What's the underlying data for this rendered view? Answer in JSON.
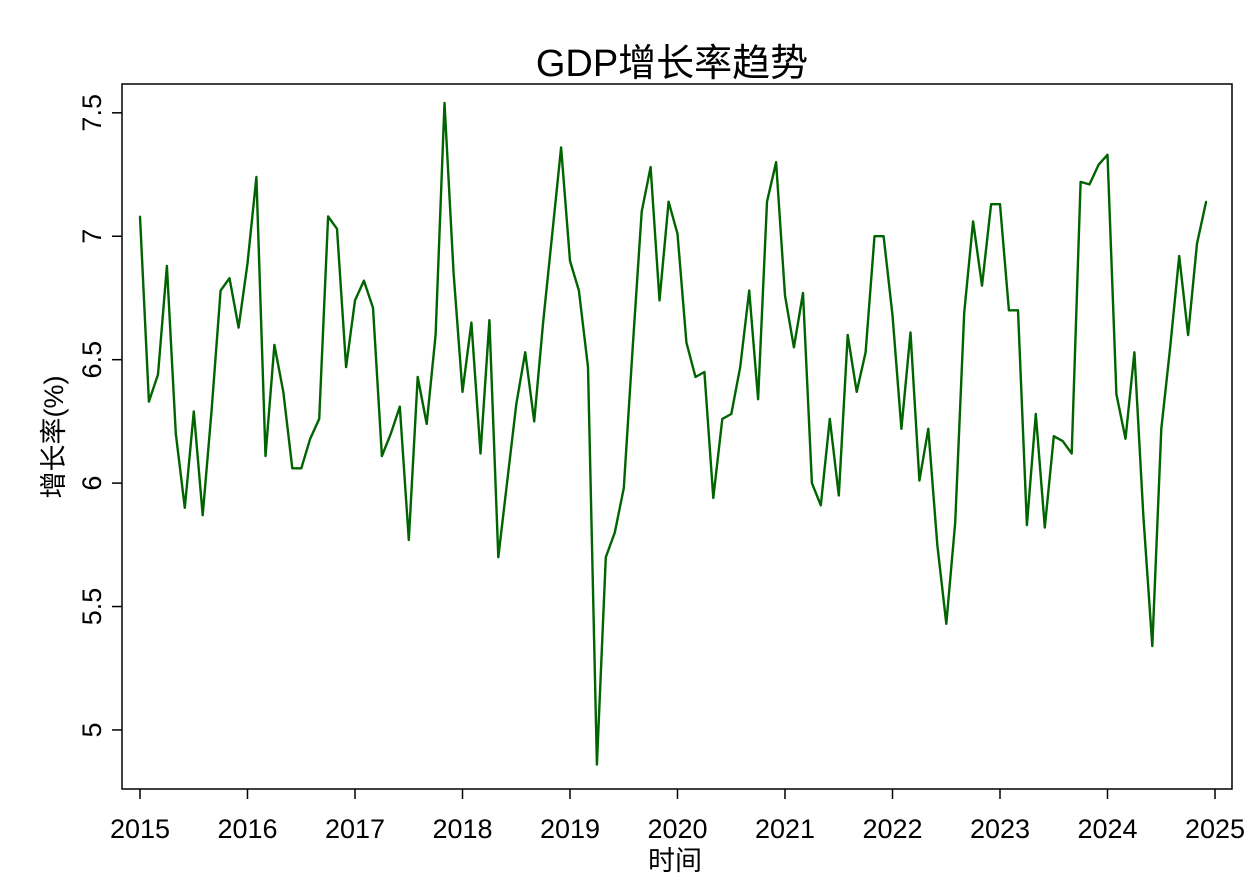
{
  "chart_data": {
    "type": "line",
    "title": "GDP增长率趋势",
    "xlabel": "时间",
    "ylabel": "增长率(%)",
    "xlim": [
      2015.0,
      2025.0
    ],
    "ylim": [
      4.85,
      7.56
    ],
    "xticks": [
      "2015",
      "2016",
      "2017",
      "2018",
      "2019",
      "2020",
      "2021",
      "2022",
      "2023",
      "2024",
      "2025"
    ],
    "yticks": [
      "5",
      "5.5",
      "6",
      "6.5",
      "7",
      "7.5"
    ],
    "grid": false,
    "line_color": "#006400",
    "series": [
      {
        "x": [
          2015.0,
          2015.083,
          2015.167,
          2015.25,
          2015.333,
          2015.417,
          2015.5,
          2015.583,
          2015.667,
          2015.75,
          2015.833,
          2015.917,
          2016.0,
          2016.083,
          2016.167,
          2016.25,
          2016.333,
          2016.417,
          2016.5,
          2016.583,
          2016.667,
          2016.75,
          2016.833,
          2016.917,
          2017.0,
          2017.083,
          2017.167,
          2017.25,
          2017.333,
          2017.417,
          2017.5,
          2017.583,
          2017.667,
          2017.75,
          2017.833,
          2017.917,
          2018.0,
          2018.083,
          2018.167,
          2018.25,
          2018.333,
          2018.417,
          2018.5,
          2018.583,
          2018.667,
          2018.75,
          2018.833,
          2018.917,
          2019.0,
          2019.083,
          2019.167,
          2019.25,
          2019.333,
          2019.417,
          2019.5,
          2019.583,
          2019.667,
          2019.75,
          2019.833,
          2019.917,
          2020.0,
          2020.083,
          2020.167,
          2020.25,
          2020.333,
          2020.417,
          2020.5,
          2020.583,
          2020.667,
          2020.75,
          2020.833,
          2020.917,
          2021.0,
          2021.083,
          2021.167,
          2021.25,
          2021.333,
          2021.417,
          2021.5,
          2021.583,
          2021.667,
          2021.75,
          2021.833,
          2021.917,
          2022.0,
          2022.083,
          2022.167,
          2022.25,
          2022.333,
          2022.417,
          2022.5,
          2022.583,
          2022.667,
          2022.75,
          2022.833,
          2022.917,
          2023.0,
          2023.083,
          2023.167,
          2023.25,
          2023.333,
          2023.417,
          2023.5,
          2023.583,
          2023.667,
          2023.75,
          2023.833,
          2023.917,
          2024.0,
          2024.083,
          2024.167,
          2024.25,
          2024.333,
          2024.417,
          2024.5,
          2024.583,
          2024.667,
          2024.75,
          2024.833,
          2024.917
        ],
        "y": [
          7.08,
          6.33,
          6.44,
          6.88,
          6.2,
          5.9,
          6.29,
          5.87,
          6.3,
          6.78,
          6.83,
          6.63,
          6.89,
          7.24,
          6.11,
          6.56,
          6.37,
          6.06,
          6.06,
          6.18,
          6.26,
          7.08,
          7.03,
          6.47,
          6.74,
          6.82,
          6.71,
          6.11,
          6.2,
          6.31,
          5.77,
          6.43,
          6.24,
          6.6,
          7.54,
          6.85,
          6.37,
          6.65,
          6.12,
          6.66,
          5.7,
          6.01,
          6.32,
          6.53,
          6.25,
          6.65,
          7.0,
          7.36,
          6.9,
          6.78,
          6.47,
          4.86,
          5.7,
          5.8,
          5.98,
          6.55,
          7.1,
          7.28,
          6.74,
          7.14,
          7.01,
          6.57,
          6.43,
          6.45,
          5.94,
          6.26,
          6.28,
          6.47,
          6.78,
          6.34,
          7.14,
          7.3,
          6.76,
          6.55,
          6.77,
          6.0,
          5.91,
          6.26,
          5.95,
          6.6,
          6.37,
          6.53,
          7.0,
          7.0,
          6.68,
          6.22,
          6.61,
          6.01,
          6.22,
          5.75,
          5.43,
          5.84,
          6.69,
          7.06,
          6.8,
          7.13,
          7.13,
          6.7,
          6.7,
          5.83,
          6.28,
          5.82,
          6.19,
          6.17,
          6.12,
          7.22,
          7.21,
          7.29,
          7.33,
          6.36,
          6.18,
          6.53,
          5.87,
          5.34,
          6.22,
          6.55,
          6.92,
          6.6,
          6.97,
          7.14
        ]
      }
    ]
  }
}
